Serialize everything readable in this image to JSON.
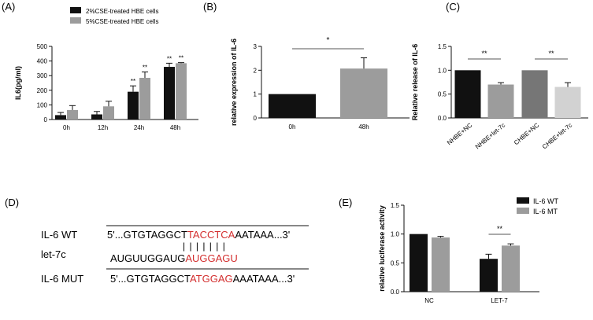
{
  "panel_labels": [
    "(A)",
    "(B)",
    "(C)",
    "(D)",
    "(E)"
  ],
  "colors": {
    "black": "#111111",
    "gray": "#9c9c9c",
    "darkgray": "#767676",
    "lightgray": "#d2d2d2",
    "red": "#d32f2f"
  },
  "chart_data": [
    {
      "panel": "(A)",
      "type": "bar",
      "ylabel": "IL6(pg/ml)",
      "xlabel": "",
      "categories": [
        "0h",
        "12h",
        "24h",
        "48h"
      ],
      "ylim": [
        0,
        500
      ],
      "yticks": [
        "0",
        "100",
        "200",
        "300",
        "400",
        "500"
      ],
      "legend_position": "top-left",
      "series": [
        {
          "name": "2%CSE-treated HBE cells",
          "color": "#111111",
          "values": [
            30,
            35,
            190,
            360
          ],
          "errors": [
            18,
            20,
            40,
            25
          ],
          "sig": [
            "",
            "",
            "**",
            "**"
          ]
        },
        {
          "name": "5%CSE-treated HBE cells",
          "color": "#9c9c9c",
          "values": [
            65,
            90,
            285,
            385
          ],
          "errors": [
            30,
            35,
            40,
            4
          ],
          "sig": [
            "",
            "",
            "**",
            "**"
          ]
        }
      ]
    },
    {
      "panel": "(B)",
      "type": "bar",
      "ylabel": "relative expression of IL-6",
      "xlabel": "",
      "categories": [
        "0h",
        "48h"
      ],
      "ylim": [
        0,
        3
      ],
      "yticks": [
        "0",
        "1",
        "2",
        "3"
      ],
      "values": [
        1.0,
        2.07
      ],
      "errors": [
        0,
        0.45
      ],
      "colors": [
        "#111111",
        "#9c9c9c"
      ],
      "sig": {
        "from": 0,
        "to": 1,
        "label": "*"
      }
    },
    {
      "panel": "(C)",
      "type": "bar",
      "ylabel": "Relative release of IL-6",
      "xlabel": "",
      "categories": [
        "NHBE+NC",
        "NHBE+let-7c",
        "CHBE+NC",
        "CHBE+let-7c"
      ],
      "ylim": [
        0,
        1.5
      ],
      "yticks": [
        "0.0",
        "0.5",
        "1.0",
        "1.5"
      ],
      "values": [
        1.0,
        0.7,
        1.0,
        0.65
      ],
      "errors": [
        0,
        0.04,
        0,
        0.09
      ],
      "colors": [
        "#111111",
        "#9c9c9c",
        "#767676",
        "#d2d2d2"
      ],
      "sig": [
        {
          "from": 0,
          "to": 1,
          "label": "**"
        },
        {
          "from": 2,
          "to": 3,
          "label": "**"
        }
      ]
    },
    {
      "panel": "(E)",
      "type": "bar",
      "ylabel": "relative luciferase activity",
      "xlabel": "",
      "categories": [
        "NC",
        "LET-7"
      ],
      "ylim": [
        0,
        1.5
      ],
      "yticks": [
        "0.0",
        "0.5",
        "1.0",
        "1.5"
      ],
      "legend_position": "top-right",
      "series": [
        {
          "name": "IL-6 WT",
          "color": "#111111",
          "values": [
            1.0,
            0.57
          ],
          "errors": [
            0,
            0.08
          ]
        },
        {
          "name": "IL-6 MT",
          "color": "#9c9c9c",
          "values": [
            0.94,
            0.8
          ],
          "errors": [
            0.02,
            0.03
          ]
        }
      ],
      "sig": {
        "category": 1,
        "label": "**"
      }
    }
  ],
  "sequence_panel": {
    "rows": [
      {
        "label": "IL-6 WT",
        "prefix": "5'...GTGTAGGCT",
        "highlight": "TACCTCA",
        "suffix": "AATAAA...3'"
      },
      {
        "label": "let-7c",
        "prefix": "AUGUUGGAUG",
        "highlight": "AUGGAGU",
        "suffix": ""
      },
      {
        "label": "IL-6 MUT",
        "prefix": "5'...GTGTAGGCT",
        "highlight": "ATGGAG",
        "suffix": "AAATAAA...3'"
      }
    ],
    "pairing_marks": "| | | | | | |"
  }
}
